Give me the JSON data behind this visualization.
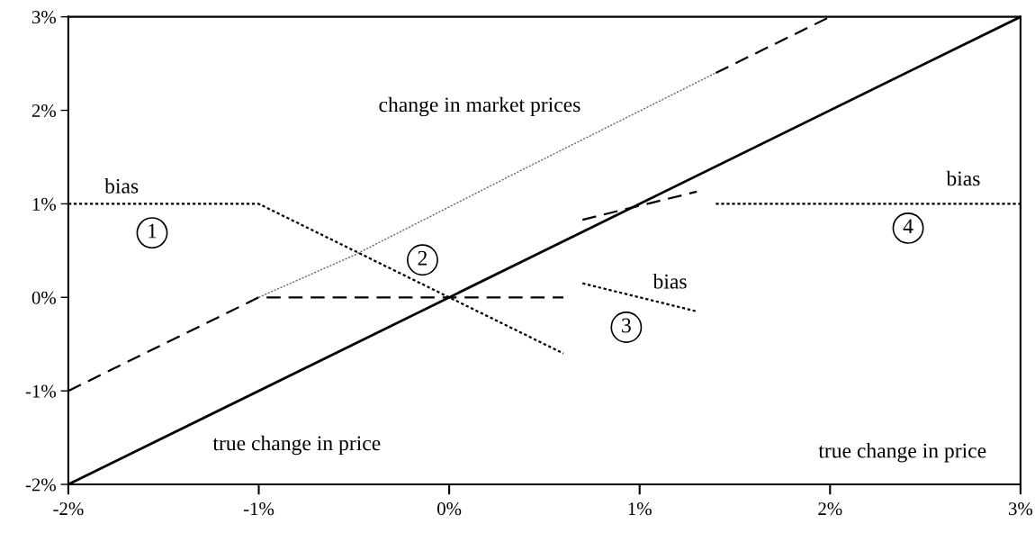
{
  "chart_data": {
    "type": "line",
    "xlim": [
      -2,
      3
    ],
    "ylim": [
      -2,
      3
    ],
    "xticks": [
      {
        "value": -2,
        "label": "-2%"
      },
      {
        "value": -1,
        "label": "-1%"
      },
      {
        "value": 0,
        "label": "0%"
      },
      {
        "value": 1,
        "label": "1%"
      },
      {
        "value": 2,
        "label": "2%"
      },
      {
        "value": 3,
        "label": "3%"
      }
    ],
    "yticks": [
      {
        "value": -2,
        "label": "-2%"
      },
      {
        "value": -1,
        "label": "-1%"
      },
      {
        "value": 0,
        "label": "0%"
      },
      {
        "value": 1,
        "label": "1%"
      },
      {
        "value": 2,
        "label": "2%"
      },
      {
        "value": 3,
        "label": "3%"
      }
    ],
    "grid": false,
    "legend": false,
    "marker": "none",
    "series": [
      {
        "color": "#000000",
        "line_style": "solid",
        "x": [
          -2,
          3
        ],
        "values": [
          -2,
          3
        ]
      },
      {
        "color": "#000000",
        "line_style": "dashed",
        "x": [
          -2,
          -1,
          0.6
        ],
        "values": [
          -1,
          0,
          0
        ]
      },
      {
        "color": "#666666",
        "line_style": "dotted",
        "x": [
          -1,
          -0.5,
          0.37,
          1.4
        ],
        "values": [
          0,
          0.45,
          1.35,
          2.4
        ]
      },
      {
        "color": "#000000",
        "line_style": "dashed",
        "x": [
          1.4,
          2
        ],
        "values": [
          2.4,
          3
        ]
      },
      {
        "color": "#000000",
        "line_style": "dotted",
        "x": [
          -2,
          -1,
          0,
          0.6
        ],
        "values": [
          1,
          1,
          0,
          -0.6
        ]
      },
      {
        "color": "#000000",
        "line_style": "dashed",
        "x": [
          0.7,
          1.3
        ],
        "values": [
          0.83,
          1.13
        ]
      },
      {
        "color": "#000000",
        "line_style": "dotted",
        "x": [
          0.7,
          1.3
        ],
        "values": [
          0.15,
          -0.15
        ]
      },
      {
        "color": "#000000",
        "line_style": "dotted",
        "x": [
          1.4,
          3
        ],
        "values": [
          1,
          1
        ]
      }
    ],
    "annotations": [
      "change in market prices",
      "true change in price",
      "true change in price",
      "bias",
      "bias",
      "bias",
      "1",
      "2",
      "3",
      "4"
    ]
  }
}
